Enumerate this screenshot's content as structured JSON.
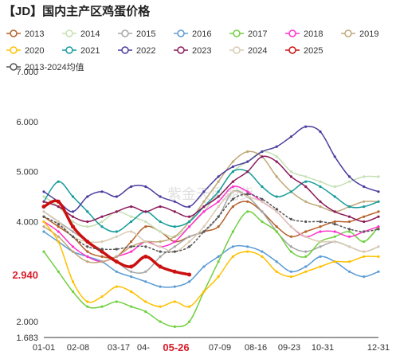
{
  "title": "【JD】国内主产区鸡蛋价格",
  "watermark": "紫金天风期货",
  "chart_data": {
    "type": "line",
    "title": "【JD】国内主产区鸡蛋价格",
    "xlabel": "",
    "ylabel": "",
    "ylim": [
      1.683,
      7.0
    ],
    "x_ticks": [
      "01-01",
      "02-08",
      "03-17",
      "04-",
      "05-26",
      "07-09",
      "08-16",
      "09-23",
      "10-31",
      "12-31"
    ],
    "y_ticks": [
      "1.683",
      "2.000",
      "3.000",
      "4.000",
      "5.000",
      "6.000",
      "7.000"
    ],
    "highlight_x_label": "05-26",
    "highlight_y_label": "2.940",
    "current_value": 2.94,
    "legend_position": "top",
    "series": [
      {
        "name": "2013",
        "color": "#b5612b",
        "values": [
          4.1,
          3.9,
          3.7,
          3.4,
          3.3,
          3.3,
          3.6,
          3.9,
          3.8,
          3.6,
          3.7,
          3.8,
          3.9,
          4.3,
          4.4,
          4.2,
          3.9,
          3.7,
          3.8,
          3.9,
          4.0,
          4.0,
          4.1,
          4.2
        ]
      },
      {
        "name": "2014",
        "color": "#c5e0b4",
        "values": [
          4.5,
          4.3,
          4.0,
          3.9,
          4.0,
          4.2,
          4.1,
          4.0,
          3.8,
          3.7,
          3.9,
          4.2,
          4.6,
          5.0,
          5.2,
          5.4,
          5.3,
          5.0,
          4.9,
          4.8,
          4.7,
          4.8,
          4.9,
          4.9
        ]
      },
      {
        "name": "2015",
        "color": "#a6a6a6",
        "values": [
          4.2,
          4.0,
          3.8,
          3.6,
          3.4,
          3.2,
          3.0,
          3.0,
          3.3,
          3.5,
          3.7,
          3.8,
          4.1,
          4.6,
          4.5,
          4.2,
          3.8,
          3.5,
          3.4,
          3.5,
          3.6,
          3.5,
          3.4,
          3.5
        ]
      },
      {
        "name": "2016",
        "color": "#5b9bd5",
        "values": [
          3.8,
          3.6,
          3.4,
          3.3,
          3.2,
          3.0,
          2.9,
          2.8,
          2.7,
          2.7,
          2.8,
          3.1,
          3.3,
          3.5,
          3.5,
          3.4,
          3.2,
          3.0,
          3.1,
          3.3,
          3.2,
          3.0,
          2.9,
          3.0
        ]
      },
      {
        "name": "2017",
        "color": "#70d040",
        "values": [
          3.4,
          3.0,
          2.6,
          2.3,
          2.3,
          2.4,
          2.3,
          2.2,
          2.0,
          1.9,
          2.0,
          2.6,
          3.2,
          3.8,
          4.2,
          4.0,
          3.8,
          3.4,
          3.3,
          3.6,
          3.7,
          3.8,
          3.6,
          3.9
        ]
      },
      {
        "name": "2018",
        "color": "#ff33cc",
        "values": [
          4.0,
          3.8,
          3.5,
          3.3,
          3.2,
          3.3,
          3.4,
          3.6,
          3.5,
          3.6,
          3.9,
          4.2,
          4.4,
          4.7,
          4.6,
          4.4,
          4.2,
          3.9,
          3.7,
          3.8,
          3.8,
          3.7,
          3.8,
          3.9
        ]
      },
      {
        "name": "2019",
        "color": "#c0a878",
        "values": [
          3.9,
          3.7,
          3.4,
          3.2,
          3.2,
          3.3,
          3.5,
          3.6,
          3.6,
          3.7,
          4.0,
          4.4,
          4.8,
          5.2,
          5.4,
          5.3,
          4.9,
          4.6,
          4.4,
          4.3,
          4.2,
          4.3,
          4.4,
          4.4
        ]
      },
      {
        "name": "2020",
        "color": "#ffc000",
        "values": [
          4.0,
          3.6,
          2.8,
          2.4,
          2.5,
          2.7,
          2.6,
          2.4,
          2.3,
          2.4,
          2.3,
          2.6,
          2.9,
          3.3,
          3.4,
          3.3,
          3.0,
          2.9,
          3.0,
          3.1,
          3.2,
          3.2,
          3.3,
          3.3
        ]
      },
      {
        "name": "2021",
        "color": "#169b9b",
        "values": [
          4.4,
          4.8,
          4.5,
          4.2,
          3.9,
          3.8,
          4.0,
          4.2,
          4.0,
          3.9,
          4.0,
          4.3,
          4.6,
          5.0,
          5.0,
          4.7,
          4.5,
          4.6,
          4.8,
          4.7,
          4.5,
          4.3,
          4.3,
          4.4
        ]
      },
      {
        "name": "2022",
        "color": "#4a3d9e",
        "values": [
          4.6,
          4.4,
          4.2,
          4.5,
          4.6,
          4.5,
          4.7,
          4.7,
          4.5,
          4.4,
          4.3,
          4.6,
          4.9,
          5.1,
          5.2,
          5.4,
          5.5,
          5.7,
          5.9,
          5.8,
          5.3,
          4.9,
          4.7,
          4.6
        ]
      },
      {
        "name": "2023",
        "color": "#8b1a5a",
        "values": [
          4.4,
          4.3,
          4.1,
          4.0,
          4.1,
          4.2,
          4.3,
          4.2,
          4.3,
          4.2,
          4.1,
          4.3,
          4.5,
          4.8,
          5.0,
          5.3,
          5.2,
          4.9,
          4.7,
          4.4,
          4.2,
          4.1,
          4.0,
          4.1
        ]
      },
      {
        "name": "2024",
        "color": "#d9cbb5",
        "values": [
          4.2,
          4.0,
          3.7,
          3.6,
          3.6,
          3.7,
          3.8,
          3.6,
          3.5,
          3.4,
          3.6,
          3.9,
          4.3,
          4.6,
          4.5,
          4.4,
          4.2,
          3.9,
          3.7,
          3.6,
          3.6,
          3.5,
          3.4,
          3.5
        ]
      },
      {
        "name": "2025",
        "color": "#cc1010",
        "values": [
          4.3,
          4.4,
          3.9,
          3.6,
          3.4,
          3.2,
          3.1,
          3.3,
          3.1,
          3.0,
          2.94
        ]
      },
      {
        "name": "2013-2024均值",
        "color": "#555555",
        "dashed": true,
        "values": [
          4.1,
          3.95,
          3.7,
          3.5,
          3.45,
          3.45,
          3.5,
          3.5,
          3.4,
          3.4,
          3.5,
          3.8,
          4.1,
          4.45,
          4.55,
          4.45,
          4.25,
          4.05,
          4.0,
          4.0,
          3.95,
          3.85,
          3.8,
          3.85
        ]
      }
    ]
  }
}
